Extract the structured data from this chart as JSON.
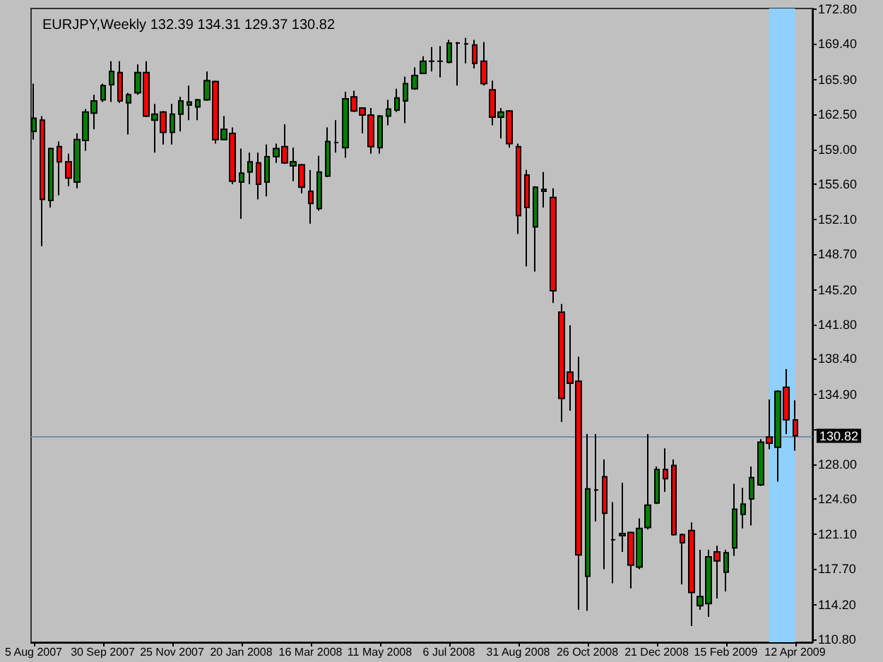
{
  "chart_data": {
    "type": "candlestick",
    "title": "EURJPY,Weekly 132.39 134.31 129.37 130.82",
    "x": [
      "2007-08-05",
      "2007-08-12",
      "2007-08-19",
      "2007-08-26",
      "2007-09-02",
      "2007-09-09",
      "2007-09-16",
      "2007-09-23",
      "2007-09-30",
      "2007-10-07",
      "2007-10-14",
      "2007-10-21",
      "2007-10-28",
      "2007-11-04",
      "2007-11-11",
      "2007-11-18",
      "2007-11-25",
      "2007-12-02",
      "2007-12-09",
      "2007-12-16",
      "2007-12-23",
      "2007-12-30",
      "2008-01-06",
      "2008-01-13",
      "2008-01-20",
      "2008-01-27",
      "2008-02-03",
      "2008-02-10",
      "2008-02-17",
      "2008-02-24",
      "2008-03-02",
      "2008-03-09",
      "2008-03-16",
      "2008-03-23",
      "2008-03-30",
      "2008-04-06",
      "2008-04-13",
      "2008-04-20",
      "2008-04-27",
      "2008-05-04",
      "2008-05-11",
      "2008-05-18",
      "2008-05-25",
      "2008-06-01",
      "2008-06-08",
      "2008-06-15",
      "2008-06-22",
      "2008-06-29",
      "2008-07-06",
      "2008-07-13",
      "2008-07-20",
      "2008-07-27",
      "2008-08-03",
      "2008-08-10",
      "2008-08-17",
      "2008-08-24",
      "2008-08-31",
      "2008-09-07",
      "2008-09-14",
      "2008-09-21",
      "2008-09-28",
      "2008-10-05",
      "2008-10-12",
      "2008-10-19",
      "2008-10-26",
      "2008-11-02",
      "2008-11-09",
      "2008-11-16",
      "2008-11-23",
      "2008-11-30",
      "2008-12-07",
      "2008-12-14",
      "2008-12-21",
      "2008-12-28",
      "2009-01-04",
      "2009-01-11",
      "2009-01-18",
      "2009-01-25",
      "2009-02-01",
      "2009-02-08",
      "2009-02-15",
      "2009-02-22",
      "2009-03-01",
      "2009-03-08",
      "2009-03-15",
      "2009-03-22",
      "2009-03-29",
      "2009-04-05",
      "2009-04-12"
    ],
    "ohlc": [
      [
        160.8,
        165.5,
        160.0,
        162.1
      ],
      [
        161.9,
        162.3,
        149.5,
        154.1
      ],
      [
        154.0,
        159.2,
        153.3,
        159.1
      ],
      [
        159.3,
        159.8,
        154.5,
        157.8
      ],
      [
        157.8,
        158.6,
        155.4,
        156.2
      ],
      [
        155.8,
        160.6,
        155.2,
        160.0
      ],
      [
        159.9,
        163.0,
        158.9,
        162.7
      ],
      [
        162.6,
        164.4,
        161.0,
        163.8
      ],
      [
        163.9,
        165.5,
        163.7,
        165.3
      ],
      [
        165.4,
        167.7,
        163.7,
        166.7
      ],
      [
        166.6,
        167.7,
        163.6,
        163.8
      ],
      [
        163.6,
        164.6,
        160.5,
        164.4
      ],
      [
        164.6,
        167.4,
        164.4,
        166.6
      ],
      [
        166.6,
        167.7,
        162.2,
        162.3
      ],
      [
        161.9,
        163.5,
        158.7,
        162.5
      ],
      [
        162.7,
        162.8,
        159.5,
        160.7
      ],
      [
        160.7,
        163.5,
        159.5,
        162.5
      ],
      [
        162.5,
        164.2,
        160.8,
        163.8
      ],
      [
        163.4,
        165.3,
        161.9,
        163.7
      ],
      [
        163.2,
        164.0,
        161.9,
        163.9
      ],
      [
        163.9,
        166.7,
        163.8,
        165.8
      ],
      [
        165.7,
        165.8,
        159.6,
        160.0
      ],
      [
        160.0,
        162.3,
        159.9,
        161.0
      ],
      [
        160.6,
        161.2,
        155.6,
        155.9
      ],
      [
        155.8,
        159.1,
        152.2,
        156.7
      ],
      [
        156.8,
        158.7,
        155.6,
        157.8
      ],
      [
        157.7,
        158.7,
        154.1,
        155.6
      ],
      [
        155.8,
        159.5,
        154.4,
        158.3
      ],
      [
        158.3,
        159.6,
        157.7,
        159.1
      ],
      [
        159.3,
        161.5,
        157.6,
        157.7
      ],
      [
        157.4,
        159.2,
        155.9,
        157.8
      ],
      [
        157.5,
        157.6,
        154.7,
        155.3
      ],
      [
        154.9,
        157.0,
        151.7,
        153.7
      ],
      [
        153.2,
        158.4,
        153.0,
        156.8
      ],
      [
        156.4,
        161.2,
        156.3,
        159.8
      ],
      [
        159.7,
        161.9,
        158.7,
        159.7
      ],
      [
        159.2,
        164.7,
        158.2,
        164.0
      ],
      [
        164.2,
        164.8,
        162.7,
        162.8
      ],
      [
        163.1,
        163.1,
        160.6,
        162.4
      ],
      [
        162.4,
        163.1,
        158.6,
        159.3
      ],
      [
        159.2,
        162.4,
        158.6,
        162.3
      ],
      [
        162.3,
        163.9,
        161.4,
        163.0
      ],
      [
        162.9,
        165.0,
        162.7,
        164.1
      ],
      [
        163.8,
        166.2,
        161.6,
        165.5
      ],
      [
        165.0,
        167.1,
        164.9,
        166.3
      ],
      [
        166.5,
        168.2,
        166.5,
        167.7
      ],
      [
        167.7,
        169.1,
        166.7,
        167.7
      ],
      [
        167.7,
        169.2,
        166.1,
        167.7
      ],
      [
        167.6,
        169.8,
        167.5,
        169.5
      ],
      [
        169.5,
        169.6,
        165.3,
        169.5
      ],
      [
        169.4,
        170.0,
        167.5,
        169.4
      ],
      [
        169.3,
        169.8,
        167.0,
        167.5
      ],
      [
        167.7,
        169.6,
        165.3,
        165.5
      ],
      [
        164.9,
        165.8,
        161.4,
        162.2
      ],
      [
        162.2,
        163.1,
        160.1,
        162.7
      ],
      [
        162.8,
        162.9,
        159.2,
        159.6
      ],
      [
        159.3,
        159.6,
        150.7,
        152.5
      ],
      [
        156.5,
        157.0,
        147.5,
        153.3
      ],
      [
        151.4,
        155.4,
        147.0,
        155.3
      ],
      [
        154.9,
        156.8,
        153.3,
        155.1
      ],
      [
        154.3,
        155.2,
        143.9,
        145.1
      ],
      [
        143.0,
        143.8,
        132.2,
        134.5
      ],
      [
        137.1,
        141.7,
        133.3,
        136.0
      ],
      [
        136.2,
        138.6,
        113.7,
        119.1
      ],
      [
        117.0,
        131.0,
        113.6,
        125.6
      ],
      [
        125.5,
        131.0,
        122.4,
        125.5
      ],
      [
        126.8,
        128.5,
        117.7,
        123.2
      ],
      [
        120.6,
        124.3,
        116.3,
        120.6
      ],
      [
        121.0,
        126.2,
        119.4,
        121.2
      ],
      [
        121.3,
        121.4,
        115.8,
        118.1
      ],
      [
        117.9,
        122.7,
        117.7,
        121.7
      ],
      [
        121.8,
        131.0,
        121.6,
        124.0
      ],
      [
        124.2,
        127.8,
        124.1,
        127.5
      ],
      [
        127.5,
        129.6,
        125.3,
        126.6
      ],
      [
        127.9,
        128.5,
        121.0,
        121.1
      ],
      [
        121.1,
        121.2,
        116.2,
        120.3
      ],
      [
        121.5,
        122.3,
        112.1,
        115.4
      ],
      [
        114.1,
        119.6,
        113.7,
        115.0
      ],
      [
        114.3,
        119.6,
        113.0,
        118.9
      ],
      [
        119.4,
        120.0,
        114.8,
        118.5
      ],
      [
        117.4,
        119.6,
        115.5,
        119.3
      ],
      [
        119.8,
        126.1,
        119.0,
        123.6
      ],
      [
        123.1,
        125.7,
        121.7,
        124.1
      ],
      [
        124.6,
        127.8,
        122.0,
        126.7
      ],
      [
        126.0,
        130.5,
        125.9,
        130.2
      ],
      [
        130.7,
        134.4,
        129.5,
        130.1
      ],
      [
        129.7,
        135.3,
        126.3,
        135.2
      ],
      [
        135.6,
        137.4,
        131.0,
        132.4
      ],
      [
        132.39,
        134.31,
        129.37,
        130.82
      ]
    ],
    "colors": [
      "#008000",
      "#ff0000",
      "#008000",
      "#ff0000",
      "#ff0000",
      "#008000",
      "#008000",
      "#008000",
      "#008000",
      "#008000",
      "#ff0000",
      "#008000",
      "#008000",
      "#ff0000",
      "#008000",
      "#ff0000",
      "#008000",
      "#008000",
      "#008000",
      "#008000",
      "#008000",
      "#ff0000",
      "#008000",
      "#ff0000",
      "#008000",
      "#008000",
      "#ff0000",
      "#008000",
      "#008000",
      "#ff0000",
      "#008000",
      "#ff0000",
      "#ff0000",
      "#008000",
      "#008000",
      "#000000",
      "#008000",
      "#ff0000",
      "#ff0000",
      "#ff0000",
      "#008000",
      "#008000",
      "#008000",
      "#008000",
      "#008000",
      "#008000",
      "#000000",
      "#000000",
      "#008000",
      "#000000",
      "#000000",
      "#ff0000",
      "#ff0000",
      "#ff0000",
      "#008000",
      "#ff0000",
      "#ff0000",
      "#ff0000",
      "#008000",
      "#008000",
      "#ff0000",
      "#ff0000",
      "#ff0000",
      "#ff0000",
      "#008000",
      "#000000",
      "#ff0000",
      "#000000",
      "#008000",
      "#ff0000",
      "#008000",
      "#008000",
      "#008000",
      "#ff0000",
      "#ff0000",
      "#ff0000",
      "#ff0000",
      "#008000",
      "#008000",
      "#ff0000",
      "#008000",
      "#008000",
      "#008000",
      "#008000",
      "#008000",
      "#ff0000",
      "#008000",
      "#ff0000",
      "#ff0000"
    ],
    "xlim": [
      "2007-08-03",
      "2009-04-26"
    ],
    "xticks": [
      {
        "value": "2007-08-05",
        "label": "5 Aug 2007"
      },
      {
        "value": "2007-09-30",
        "label": "30 Sep 2007"
      },
      {
        "value": "2007-11-25",
        "label": "25 Nov 2007"
      },
      {
        "value": "2008-01-20",
        "label": "20 Jan 2008"
      },
      {
        "value": "2008-03-16",
        "label": "16 Mar 2008"
      },
      {
        "value": "2008-05-11",
        "label": "11 May 2008"
      },
      {
        "value": "2008-07-06",
        "label": "6 Jul 2008"
      },
      {
        "value": "2008-08-31",
        "label": "31 Aug 2008"
      },
      {
        "value": "2008-10-26",
        "label": "26 Oct 2008"
      },
      {
        "value": "2008-12-21",
        "label": "21 Dec 2008"
      },
      {
        "value": "2009-02-15",
        "label": "15 Feb 2009"
      },
      {
        "value": "2009-04-12",
        "label": "12 Apr 2009"
      }
    ],
    "ylim": [
      110.5,
      172.9
    ],
    "yticks": [
      {
        "value": 172.8,
        "label": "172.80"
      },
      {
        "value": 169.4,
        "label": "169.40"
      },
      {
        "value": 165.9,
        "label": "165.90"
      },
      {
        "value": 162.5,
        "label": "162.50"
      },
      {
        "value": 159,
        "label": "159.00"
      },
      {
        "value": 155.6,
        "label": "155.60"
      },
      {
        "value": 152.1,
        "label": "152.10"
      },
      {
        "value": 148.7,
        "label": "148.70"
      },
      {
        "value": 145.2,
        "label": "145.20"
      },
      {
        "value": 141.8,
        "label": "141.80"
      },
      {
        "value": 138.4,
        "label": "138.40"
      },
      {
        "value": 134.9,
        "label": "134.90"
      },
      {
        "value": 131.5,
        "label": null
      },
      {
        "value": 128,
        "label": "128.00"
      },
      {
        "value": 124.6,
        "label": "124.60"
      },
      {
        "value": 121.1,
        "label": "121.10"
      },
      {
        "value": 117.7,
        "label": "117.70"
      },
      {
        "value": 114.2,
        "label": "114.20"
      },
      {
        "value": 110.8,
        "label": "110.80"
      }
    ],
    "ref_lines": [
      {
        "axis": "y",
        "value": 130.82,
        "label": "130.82",
        "color": "#7a8ca3"
      }
    ],
    "bands": [
      {
        "axis": "x",
        "from": "2009-03-22",
        "to": "2009-04-12",
        "color": "#8fd0ff"
      }
    ]
  }
}
